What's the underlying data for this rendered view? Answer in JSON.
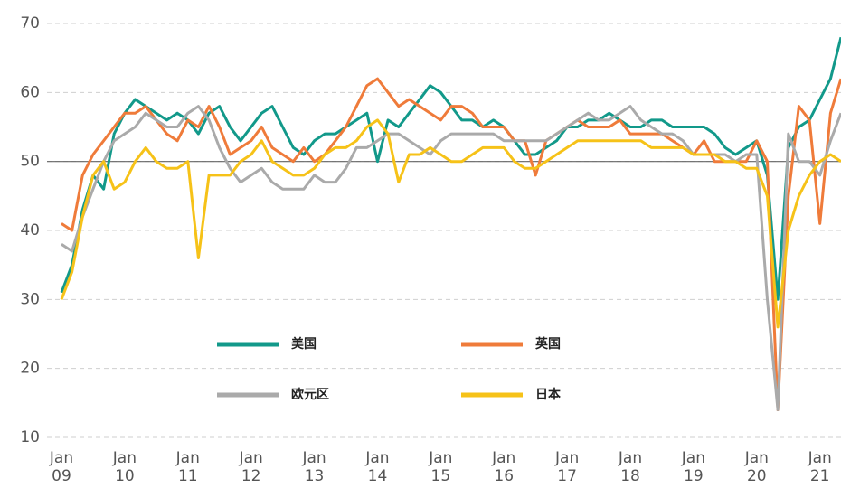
{
  "chart_data": {
    "type": "line",
    "x": [
      0,
      2,
      4,
      6,
      8,
      10,
      12,
      14,
      16,
      18,
      20,
      22,
      24,
      26,
      28,
      30,
      32,
      34,
      36,
      38,
      40,
      42,
      44,
      46,
      48,
      50,
      52,
      54,
      56,
      58,
      60,
      62,
      64,
      66,
      68,
      70,
      72,
      74,
      76,
      78,
      80,
      82,
      84,
      86,
      88,
      90,
      92,
      94,
      96,
      98,
      100,
      102,
      104,
      106,
      108,
      110,
      112,
      114,
      116,
      118,
      120,
      122,
      124,
      126,
      128,
      130,
      132,
      134,
      136,
      138,
      140,
      142,
      144,
      146,
      148
    ],
    "xlim": [
      0,
      148
    ],
    "xticks": [
      {
        "value": 0,
        "label": "Jan 09"
      },
      {
        "value": 12,
        "label": "Jan 10"
      },
      {
        "value": 24,
        "label": "Jan 11"
      },
      {
        "value": 36,
        "label": "Jan 12"
      },
      {
        "value": 48,
        "label": "Jan 13"
      },
      {
        "value": 60,
        "label": "Jan 14"
      },
      {
        "value": 72,
        "label": "Jan 15"
      },
      {
        "value": 84,
        "label": "Jan 16"
      },
      {
        "value": 96,
        "label": "Jan 17"
      },
      {
        "value": 108,
        "label": "Jan 18"
      },
      {
        "value": 120,
        "label": "Jan 19"
      },
      {
        "value": 132,
        "label": "Jan 20"
      },
      {
        "value": 144,
        "label": "Jan 21"
      }
    ],
    "ylim": [
      10,
      70
    ],
    "yticks": [
      10,
      20,
      30,
      40,
      50,
      60,
      70
    ],
    "grid": true,
    "reference_line": 50,
    "series": [
      {
        "name": "美国",
        "color": "#12998a",
        "values": [
          31,
          35,
          43,
          48,
          46,
          54,
          57,
          59,
          58,
          57,
          56,
          57,
          56,
          54,
          57,
          58,
          55,
          53,
          55,
          57,
          58,
          55,
          52,
          51,
          53,
          54,
          54,
          55,
          56,
          57,
          50,
          56,
          55,
          57,
          59,
          61,
          60,
          58,
          56,
          56,
          55,
          56,
          55,
          53,
          51,
          51,
          52,
          53,
          55,
          55,
          56,
          56,
          57,
          56,
          55,
          55,
          56,
          56,
          55,
          55,
          55,
          55,
          54,
          52,
          51,
          52,
          53,
          48,
          30,
          52,
          55,
          56,
          59,
          62,
          68
        ]
      },
      {
        "name": "英国",
        "color": "#ef7b3a",
        "values": [
          41,
          40,
          48,
          51,
          53,
          55,
          57,
          57,
          58,
          56,
          54,
          53,
          56,
          55,
          58,
          55,
          51,
          52,
          53,
          55,
          52,
          51,
          50,
          52,
          50,
          51,
          53,
          55,
          58,
          61,
          62,
          60,
          58,
          59,
          58,
          57,
          56,
          58,
          58,
          57,
          55,
          55,
          55,
          53,
          53,
          48,
          53,
          54,
          55,
          56,
          55,
          55,
          55,
          56,
          54,
          54,
          54,
          54,
          53,
          52,
          51,
          53,
          50,
          50,
          50,
          50,
          53,
          50,
          14,
          45,
          58,
          56,
          41,
          57,
          62
        ]
      },
      {
        "name": "欧元区",
        "color": "#aaaaaa",
        "values": [
          38,
          37,
          42,
          46,
          50,
          53,
          54,
          55,
          57,
          56,
          55,
          55,
          57,
          58,
          56,
          52,
          49,
          47,
          48,
          49,
          47,
          46,
          46,
          46,
          48,
          47,
          47,
          49,
          52,
          52,
          53,
          54,
          54,
          53,
          52,
          51,
          53,
          54,
          54,
          54,
          54,
          54,
          53,
          53,
          53,
          53,
          53,
          54,
          55,
          56,
          57,
          56,
          56,
          57,
          58,
          56,
          55,
          54,
          54,
          53,
          51,
          51,
          51,
          51,
          50,
          51,
          51,
          30,
          14,
          54,
          50,
          50,
          48,
          53,
          57
        ]
      },
      {
        "name": "日本",
        "color": "#f6c218",
        "values": [
          30,
          34,
          42,
          48,
          50,
          46,
          47,
          50,
          52,
          50,
          49,
          49,
          50,
          36,
          48,
          48,
          48,
          50,
          51,
          53,
          50,
          49,
          48,
          48,
          49,
          51,
          52,
          52,
          53,
          55,
          56,
          54,
          47,
          51,
          51,
          52,
          51,
          50,
          50,
          51,
          52,
          52,
          52,
          50,
          49,
          49,
          50,
          51,
          52,
          53,
          53,
          53,
          53,
          53,
          53,
          53,
          52,
          52,
          52,
          52,
          51,
          51,
          51,
          50,
          50,
          49,
          49,
          45,
          26,
          40,
          45,
          48,
          50,
          51,
          50
        ]
      }
    ]
  }
}
